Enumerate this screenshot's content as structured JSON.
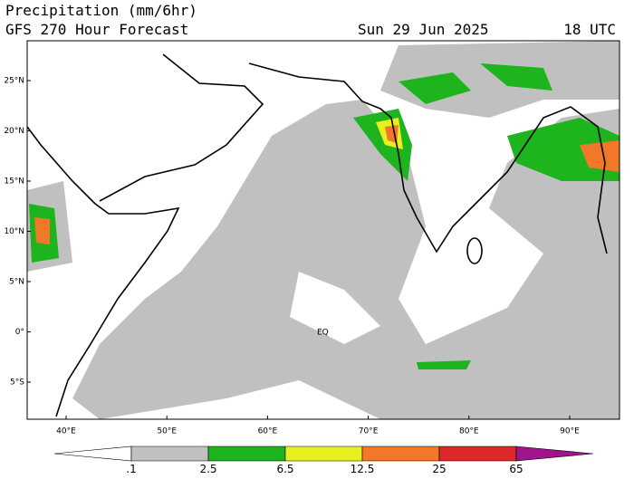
{
  "header": {
    "title": "Precipitation (mm/6hr)",
    "subtitle": "GFS 270 Hour Forecast",
    "date": "Sun 29 Jun 2025",
    "time": "18 UTC"
  },
  "map": {
    "lat_labels": [
      "25°N",
      "20°N",
      "15°N",
      "10°N",
      "5°N",
      "0°",
      "5°S"
    ],
    "lon_labels": [
      "40°E",
      "50°E",
      "60°E",
      "70°E",
      "80°E",
      "90°E"
    ],
    "annotation": "EQ"
  },
  "legend": {
    "labels": [
      ".1",
      "2.5",
      "6.5",
      "12.5",
      "25",
      "65"
    ],
    "colors": [
      "#ffffff",
      "#c0c0c0",
      "#1eb41e",
      "#e6f01e",
      "#f07828",
      "#dc2828",
      "#a0148c"
    ]
  }
}
